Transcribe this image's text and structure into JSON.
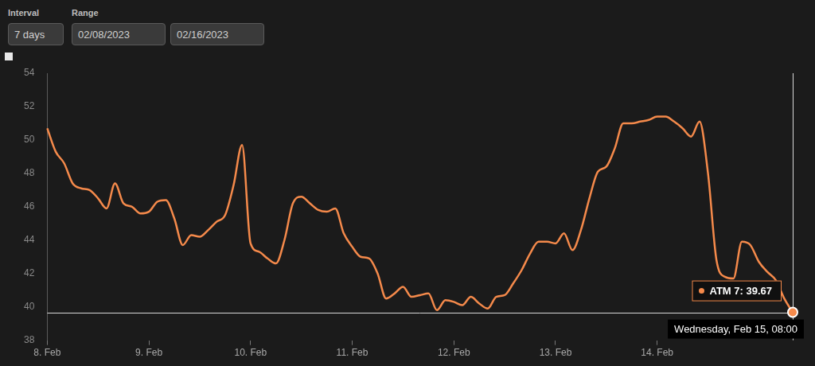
{
  "header": {
    "interval_label": "Interval",
    "interval": "7 days",
    "range_label": "Range",
    "range_start": "02/08/2023",
    "range_end": "02/16/2023"
  },
  "chart_data": {
    "type": "line",
    "categories": [
      "8. Feb",
      null,
      null,
      null,
      null,
      null,
      null,
      null,
      null,
      null,
      null,
      null,
      "9. Feb",
      null,
      null,
      null,
      null,
      null,
      null,
      null,
      null,
      null,
      null,
      null,
      "10. Feb",
      null,
      null,
      null,
      null,
      null,
      null,
      null,
      null,
      null,
      null,
      null,
      "11. Feb",
      null,
      null,
      null,
      null,
      null,
      null,
      null,
      null,
      null,
      null,
      null,
      "12. Feb",
      null,
      null,
      null,
      null,
      null,
      null,
      null,
      null,
      null,
      null,
      null,
      "13. Feb",
      null,
      null,
      null,
      null,
      null,
      null,
      null,
      null,
      null,
      null,
      null,
      "14. Feb",
      null,
      null,
      null,
      null,
      null,
      null,
      null,
      null,
      null,
      null,
      null,
      null,
      null,
      null,
      null,
      null
    ],
    "values": [
      50.7,
      49.3,
      48.6,
      47.4,
      47.1,
      47.0,
      46.5,
      45.9,
      47.4,
      46.2,
      46.0,
      45.6,
      45.7,
      46.3,
      46.4,
      45.3,
      43.7,
      44.3,
      44.2,
      44.6,
      45.1,
      45.5,
      47.3,
      49.7,
      43.8,
      43.3,
      42.9,
      42.6,
      44.0,
      46.2,
      46.6,
      46.2,
      45.8,
      45.7,
      45.9,
      44.4,
      43.6,
      43.0,
      42.9,
      42.0,
      40.5,
      40.8,
      41.2,
      40.6,
      40.7,
      40.8,
      39.8,
      40.4,
      40.3,
      40.1,
      40.6,
      40.2,
      39.9,
      40.6,
      40.7,
      41.4,
      42.2,
      43.2,
      43.9,
      43.9,
      43.8,
      44.4,
      43.4,
      44.6,
      46.5,
      48.1,
      48.4,
      49.5,
      51.0,
      51.0,
      51.1,
      51.2,
      51.4,
      51.4,
      51.1,
      50.7,
      50.2,
      51.1,
      48.0,
      42.8,
      41.8,
      41.7,
      43.9,
      43.7,
      42.7,
      42.1,
      41.6,
      40.5,
      39.67
    ],
    "color": "#f58a4b",
    "ylim": [
      38,
      54
    ],
    "yticks": [
      38,
      40,
      42,
      44,
      46,
      48,
      50,
      52,
      54
    ],
    "grid": false,
    "annotations": [
      {
        "text": "ATM 7: 39.67",
        "value": 39.67
      },
      {
        "text": "Wednesday, Feb 15, 08:00"
      }
    ]
  }
}
